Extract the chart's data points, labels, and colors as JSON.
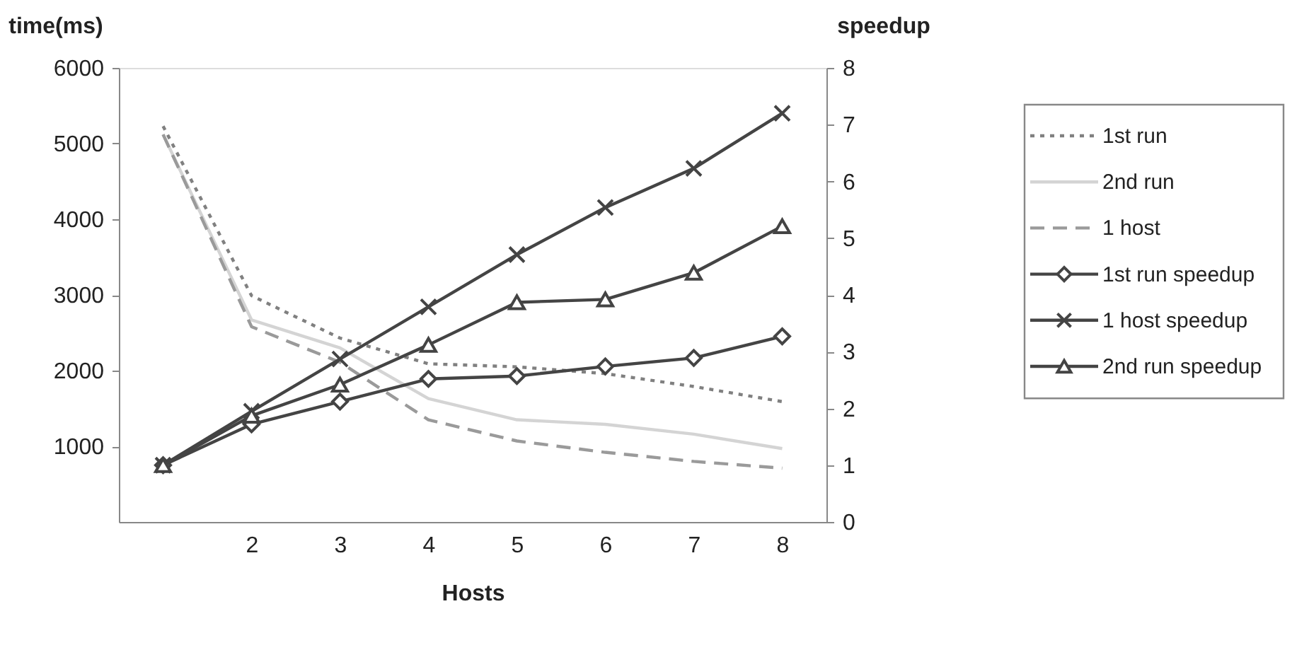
{
  "chart_data": {
    "type": "line",
    "xlabel": "Hosts",
    "ylabel": "time(ms)",
    "y2label": "speedup",
    "categories": [
      null,
      "2",
      "3",
      "4",
      "5",
      "6",
      "7",
      "8"
    ],
    "ylim": [
      0,
      6000
    ],
    "yticks": [
      1000,
      2000,
      3000,
      4000,
      5000,
      6000
    ],
    "y2lim": [
      0,
      8
    ],
    "y2ticks": [
      0,
      1,
      2,
      3,
      4,
      5,
      6,
      7,
      8
    ],
    "grid": false,
    "legend": "right",
    "series": [
      {
        "name": "1st run",
        "color": "#808080",
        "line_style": "dotted",
        "marker": "none",
        "values": [
          5230,
          2990,
          2430,
          2090,
          2050,
          1960,
          1790,
          1590
        ]
      },
      {
        "name": "2nd run",
        "color": "#d4d4d4",
        "line_style": "solid",
        "marker": "none",
        "values": [
          5120,
          2670,
          2300,
          1630,
          1350,
          1290,
          1160,
          970
        ]
      },
      {
        "name": "1 host",
        "color": "#9a9a9a",
        "line_style": "dashed",
        "marker": "none",
        "values": [
          5120,
          2580,
          2110,
          1350,
          1070,
          920,
          800,
          710
        ]
      },
      {
        "name": "1st run speedup",
        "color": "#444444",
        "line_style": "solid",
        "marker": "diamond",
        "axis": "y2",
        "values": [
          1.0,
          1.72,
          2.12,
          2.52,
          2.57,
          2.74,
          2.89,
          3.27
        ]
      },
      {
        "name": "1 host speedup",
        "color": "#444444",
        "line_style": "solid",
        "marker": "cross",
        "axis": "y2",
        "values": [
          1.0,
          1.95,
          2.87,
          3.79,
          4.71,
          5.54,
          6.23,
          7.2
        ]
      },
      {
        "name": "2nd run speedup",
        "color": "#444444",
        "line_style": "solid",
        "marker": "triangle",
        "axis": "y2",
        "values": [
          1.0,
          1.87,
          2.42,
          3.12,
          3.87,
          3.92,
          4.39,
          5.21
        ]
      }
    ]
  }
}
